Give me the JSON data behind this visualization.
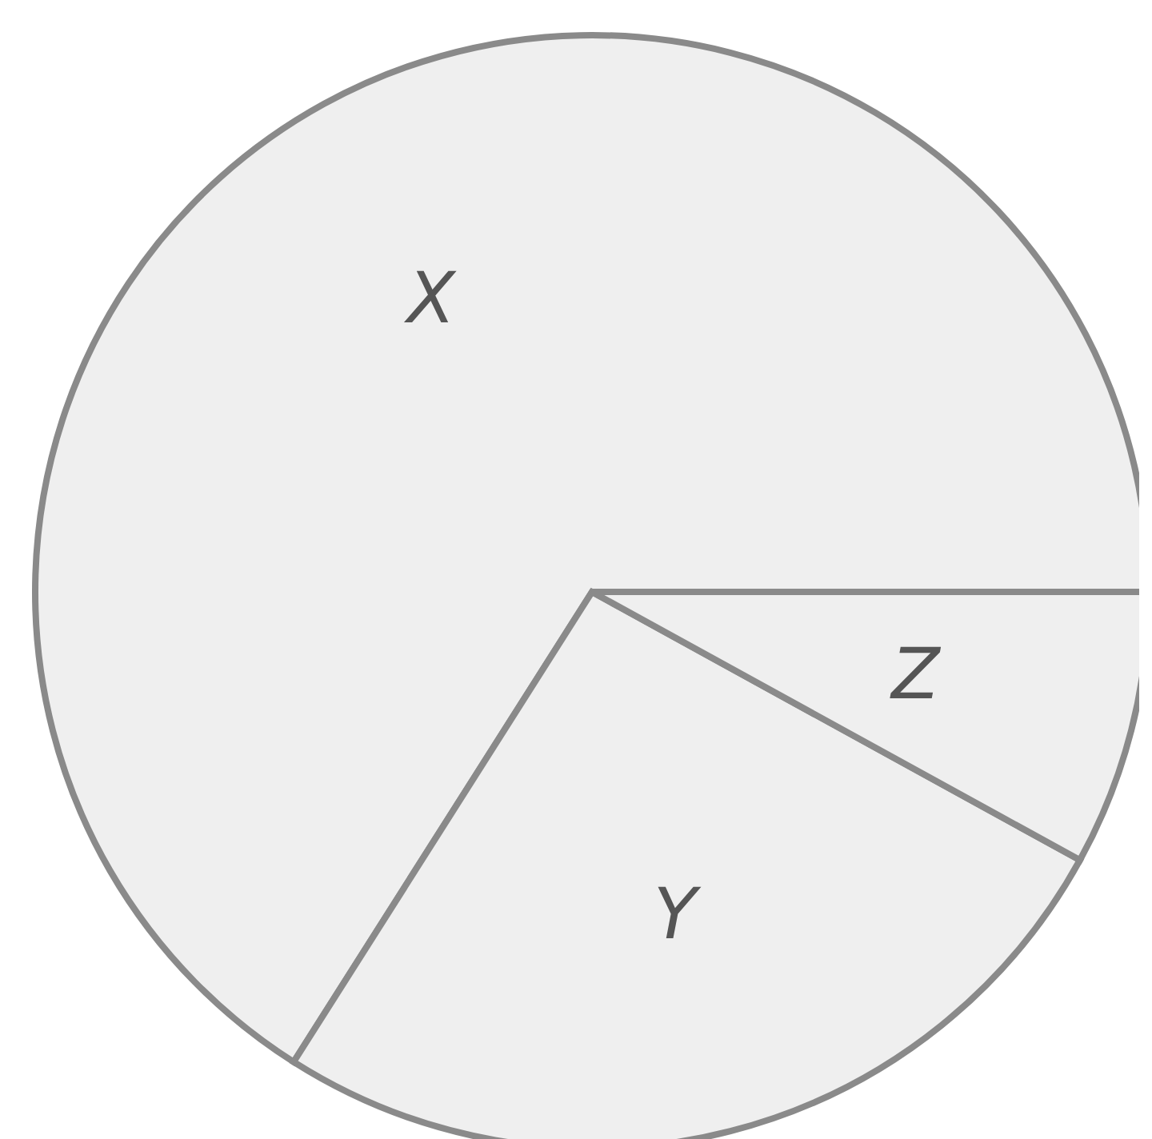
{
  "chart_data": {
    "type": "pie",
    "categories": [
      "X",
      "Y",
      "Z"
    ],
    "values": [
      66,
      26,
      8
    ],
    "colors": [
      "#efefef",
      "#efefef",
      "#efefef"
    ]
  }
}
